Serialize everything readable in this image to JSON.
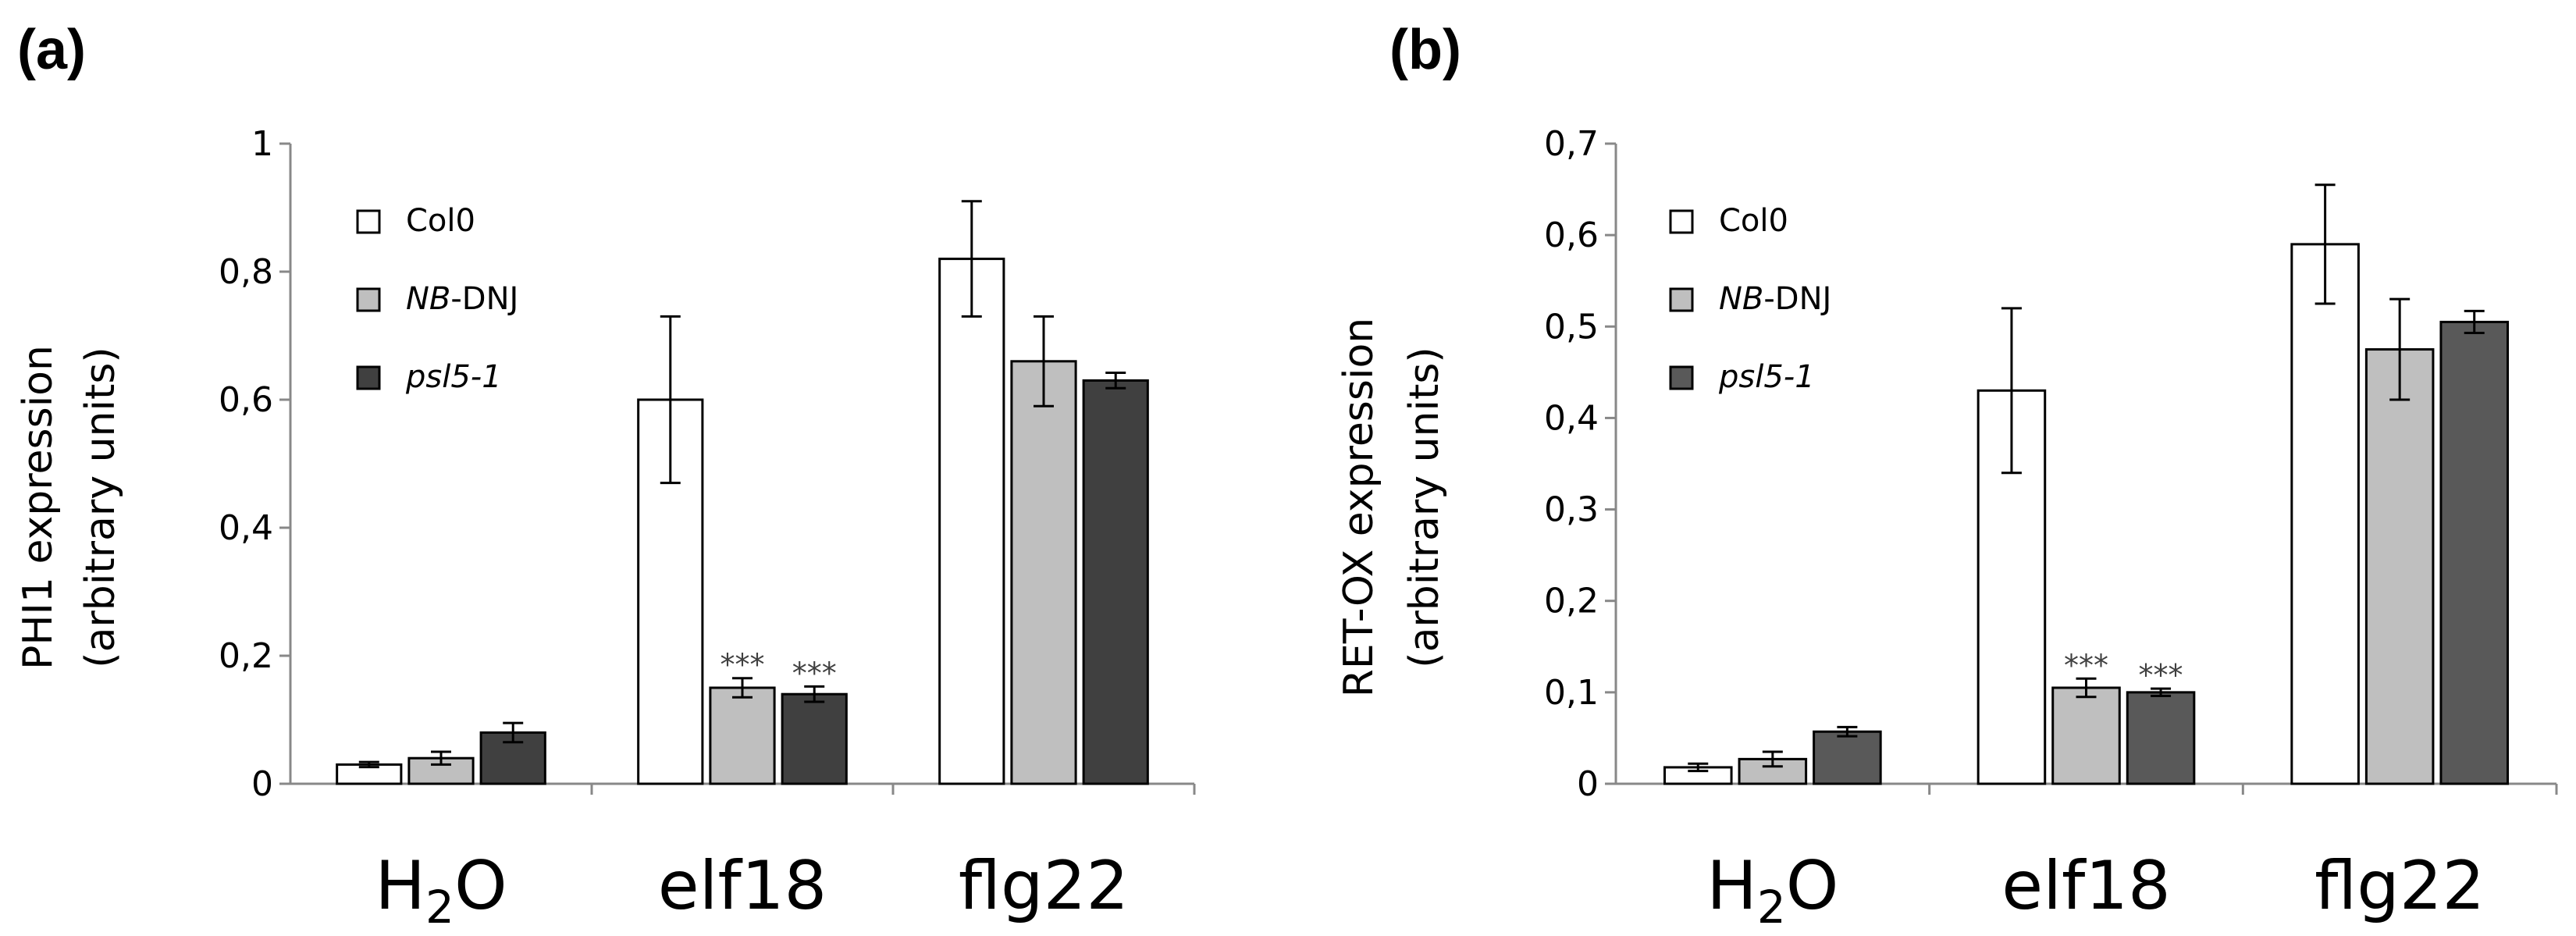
{
  "chart_data": [
    {
      "type": "bar",
      "panel_label": "(a)",
      "ylabel_line1": "PHI1 expression",
      "ylabel_line2": "(arbitrary units)",
      "ylim": [
        0,
        1
      ],
      "yticks": [
        "0",
        "0,2",
        "0,4",
        "0,6",
        "0,8",
        "1"
      ],
      "ytick_values": [
        0,
        0.2,
        0.4,
        0.6,
        0.8,
        1.0
      ],
      "categories": [
        {
          "main": "H",
          "sub": "2",
          "tail": "O"
        },
        {
          "main": "elf18",
          "sub": "",
          "tail": ""
        },
        {
          "main": "flg22",
          "sub": "",
          "tail": ""
        }
      ],
      "series": [
        {
          "name": "Col0",
          "italic": false,
          "color": "#ffffff",
          "values": [
            0.03,
            0.6,
            0.82
          ],
          "errors": [
            0.004,
            0.13,
            0.09
          ]
        },
        {
          "name": "NB-DNJ",
          "name_italic_part": "NB",
          "name_rest": "-DNJ",
          "italic": false,
          "color": "#bfbfbf",
          "values": [
            0.04,
            0.15,
            0.66
          ],
          "errors": [
            0.01,
            0.015,
            0.07
          ]
        },
        {
          "name": "psl5-1",
          "italic": true,
          "color": "#404040",
          "values": [
            0.08,
            0.14,
            0.63
          ],
          "errors": [
            0.015,
            0.012,
            0.012
          ]
        }
      ],
      "significance": [
        {
          "category": 1,
          "series": 1,
          "label": "***"
        },
        {
          "category": 1,
          "series": 2,
          "label": "***"
        }
      ]
    },
    {
      "type": "bar",
      "panel_label": "(b)",
      "ylabel_line1": "RET-OX  expression",
      "ylabel_line2": "(arbitrary units)",
      "ylim": [
        0,
        0.7
      ],
      "yticks": [
        "0",
        "0,1",
        "0,2",
        "0,3",
        "0,4",
        "0,5",
        "0,6",
        "0,7"
      ],
      "ytick_values": [
        0,
        0.1,
        0.2,
        0.3,
        0.4,
        0.5,
        0.6,
        0.7
      ],
      "categories": [
        {
          "main": "H",
          "sub": "2",
          "tail": "O"
        },
        {
          "main": "elf18",
          "sub": "",
          "tail": ""
        },
        {
          "main": "flg22",
          "sub": "",
          "tail": ""
        }
      ],
      "series": [
        {
          "name": "Col0",
          "italic": false,
          "color": "#ffffff",
          "values": [
            0.018,
            0.43,
            0.59
          ],
          "errors": [
            0.004,
            0.09,
            0.065
          ]
        },
        {
          "name": "NB-DNJ",
          "name_italic_part": "NB",
          "name_rest": "-DNJ",
          "italic": false,
          "color": "#bfbfbf",
          "values": [
            0.027,
            0.105,
            0.475
          ],
          "errors": [
            0.008,
            0.01,
            0.055
          ]
        },
        {
          "name": "psl5-1",
          "italic": true,
          "color": "#595959",
          "values": [
            0.057,
            0.1,
            0.505
          ],
          "errors": [
            0.005,
            0.004,
            0.012
          ]
        }
      ],
      "significance": [
        {
          "category": 1,
          "series": 1,
          "label": "***"
        },
        {
          "category": 1,
          "series": 2,
          "label": "***"
        }
      ]
    }
  ]
}
